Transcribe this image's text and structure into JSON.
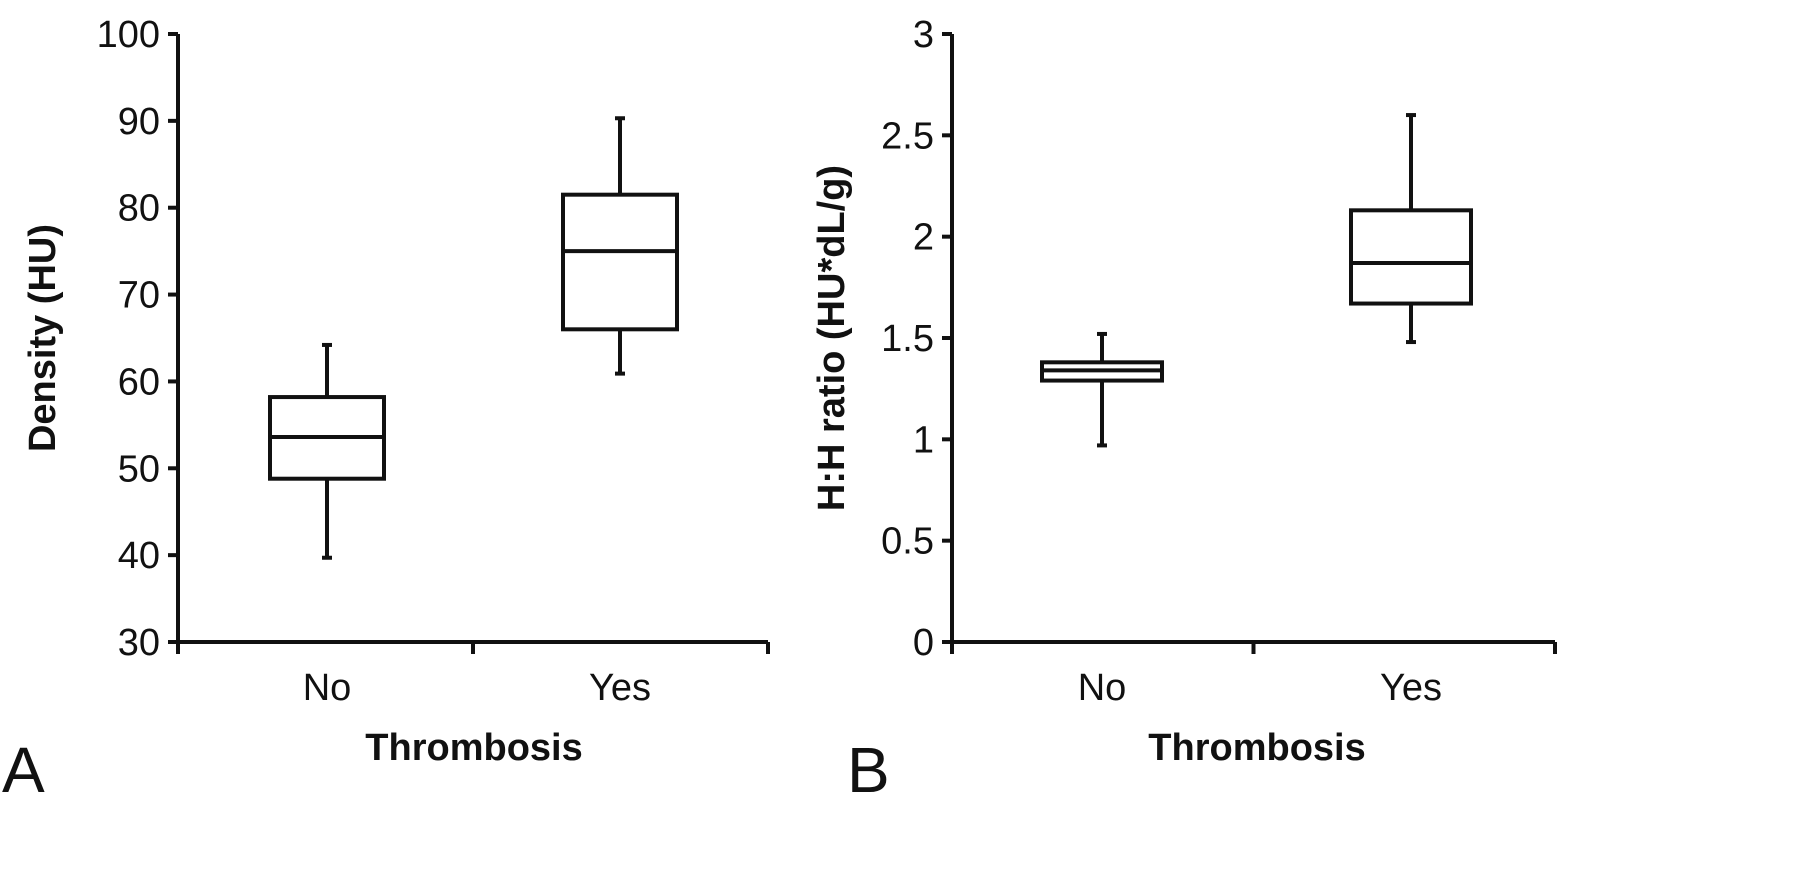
{
  "chart_data": [
    {
      "type": "box",
      "panel_label": "A",
      "xlabel": "Thrombosis",
      "ylabel": "Density (HU)",
      "categories": [
        "No",
        "Yes"
      ],
      "ylim": [
        30,
        100
      ],
      "yticks": [
        30,
        40,
        50,
        60,
        70,
        80,
        90,
        100
      ],
      "grid": false,
      "boxes": [
        {
          "category": "No",
          "min": 39.7,
          "q1": 48.8,
          "median": 53.6,
          "q3": 58.2,
          "max": 64.2
        },
        {
          "category": "Yes",
          "min": 60.9,
          "q1": 66.0,
          "median": 75.0,
          "q3": 81.5,
          "max": 90.3
        }
      ]
    },
    {
      "type": "box",
      "panel_label": "B",
      "xlabel": "Thrombosis",
      "ylabel": "H:H ratio (HU*dL/g)",
      "categories": [
        "No",
        "Yes"
      ],
      "ylim": [
        0,
        3
      ],
      "yticks": [
        0,
        0.5,
        1,
        1.5,
        2,
        2.5,
        3
      ],
      "grid": false,
      "boxes": [
        {
          "category": "No",
          "min": 0.97,
          "q1": 1.29,
          "median": 1.34,
          "q3": 1.38,
          "max": 1.52
        },
        {
          "category": "Yes",
          "min": 1.48,
          "q1": 1.67,
          "median": 1.87,
          "q3": 2.13,
          "max": 2.6
        }
      ]
    }
  ]
}
